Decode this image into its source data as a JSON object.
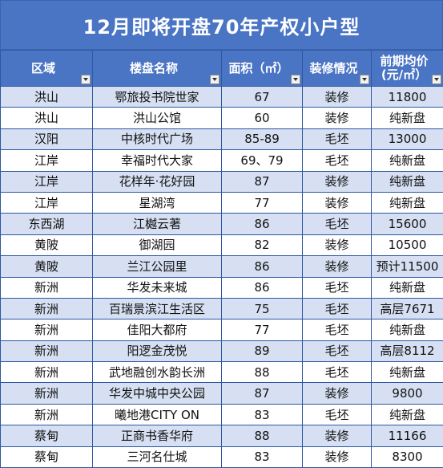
{
  "title": "12月即将开盘70年产权小户型",
  "headers": {
    "district": "区域",
    "project": "楼盘名称",
    "area": "面积（㎡）",
    "decoration": "装修情况",
    "price_line1": "前期均价",
    "price_line2": "(元/㎡）"
  },
  "rows": [
    {
      "district": "洪山",
      "project": "鄂旅投书院世家",
      "area": "67",
      "decoration": "装修",
      "price": "11800"
    },
    {
      "district": "洪山",
      "project": "洪山公馆",
      "area": "60",
      "decoration": "装修",
      "price": "纯新盘"
    },
    {
      "district": "汉阳",
      "project": "中核时代广场",
      "area": "85-89",
      "decoration": "毛坯",
      "price": "13000"
    },
    {
      "district": "江岸",
      "project": "幸福时代大家",
      "area": "69、79",
      "decoration": "毛坯",
      "price": "纯新盘"
    },
    {
      "district": "江岸",
      "project": "花样年·花好园",
      "area": "87",
      "decoration": "装修",
      "price": "纯新盘"
    },
    {
      "district": "江岸",
      "project": "星湖湾",
      "area": "77",
      "decoration": "装修",
      "price": "纯新盘"
    },
    {
      "district": "东西湖",
      "project": "江樾云著",
      "area": "86",
      "decoration": "毛坯",
      "price": "15600"
    },
    {
      "district": "黄陂",
      "project": "御湖园",
      "area": "82",
      "decoration": "装修",
      "price": "10500"
    },
    {
      "district": "黄陂",
      "project": "兰江公园里",
      "area": "86",
      "decoration": "装修",
      "price": "预计11500"
    },
    {
      "district": "新洲",
      "project": "华发未来城",
      "area": "86",
      "decoration": "毛坯",
      "price": "纯新盘"
    },
    {
      "district": "新洲",
      "project": "百瑞景滨江生活区",
      "area": "75",
      "decoration": "毛坯",
      "price": "高层7671"
    },
    {
      "district": "新洲",
      "project": "佳阳大都府",
      "area": "77",
      "decoration": "毛坯",
      "price": "纯新盘"
    },
    {
      "district": "新洲",
      "project": "阳逻金茂悦",
      "area": "89",
      "decoration": "毛坯",
      "price": "高层8112"
    },
    {
      "district": "新洲",
      "project": "武地融创水韵长洲",
      "area": "88",
      "decoration": "毛坯",
      "price": "纯新盘"
    },
    {
      "district": "新洲",
      "project": "华发中城中央公园",
      "area": "87",
      "decoration": "装修",
      "price": "9800"
    },
    {
      "district": "新洲",
      "project": "曦地港CITY ON",
      "area": "83",
      "decoration": "毛坯",
      "price": "纯新盘"
    },
    {
      "district": "蔡甸",
      "project": "正商书香华府",
      "area": "88",
      "decoration": "装修",
      "price": "11166"
    },
    {
      "district": "蔡甸",
      "project": "三河名仕城",
      "area": "83",
      "decoration": "装修",
      "price": "8300"
    }
  ]
}
